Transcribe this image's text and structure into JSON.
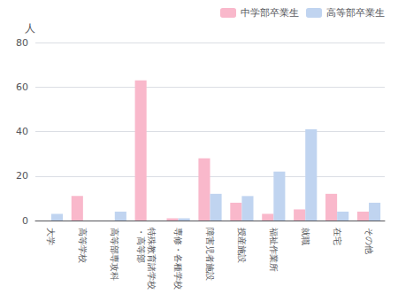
{
  "chart_data": {
    "type": "bar",
    "categories": [
      "大学",
      "高等学校",
      "高等部専攻科",
      "特殊教育諸学校\n・高等部",
      "専修・各種学校",
      "障害児者施設",
      "授産施設",
      "福祉作業所",
      "就職",
      "在宅",
      "その他"
    ],
    "series": [
      {
        "name": "中学部卒業生",
        "color": "#f9b8cb",
        "values": [
          0,
          11,
          0,
          63,
          1,
          28,
          8,
          3,
          5,
          12,
          4
        ]
      },
      {
        "name": "高等部卒業生",
        "color": "#c0d4f0",
        "values": [
          3,
          0,
          4,
          0,
          1,
          12,
          11,
          22,
          41,
          4,
          8
        ]
      }
    ],
    "ylabel": "人",
    "ylim": [
      0,
      80
    ],
    "yticks": [
      0,
      20,
      40,
      60,
      80
    ],
    "grid": true,
    "legend": "upper right"
  }
}
